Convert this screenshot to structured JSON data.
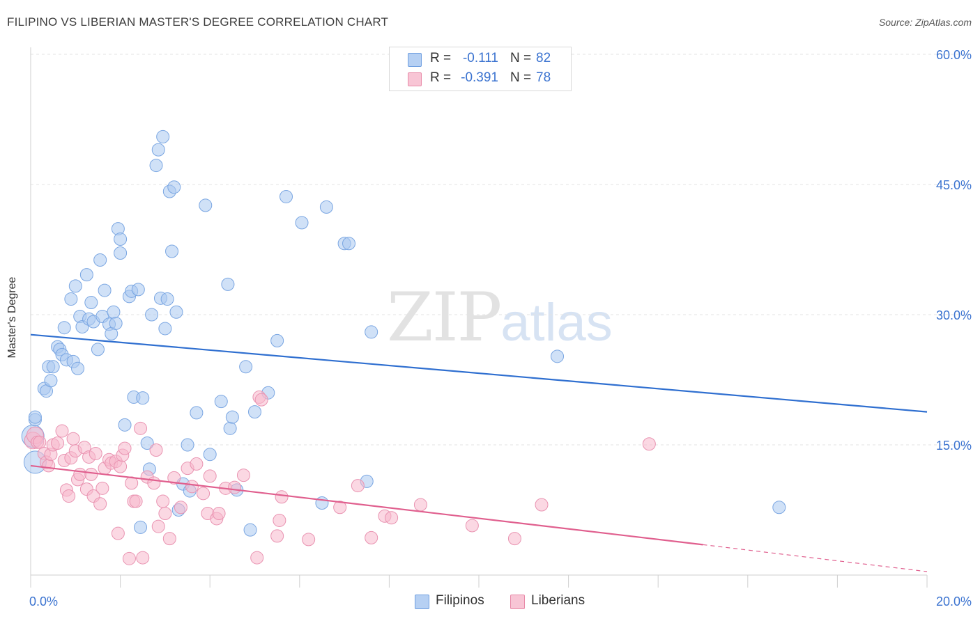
{
  "header": {
    "title": "FILIPINO VS LIBERIAN MASTER'S DEGREE CORRELATION CHART",
    "source": "Source: ZipAtlas.com"
  },
  "watermark": {
    "zip": "ZIP",
    "atlas": "atlas"
  },
  "stats": [
    {
      "r_label": "R =",
      "r_value": "-0.111",
      "n_label": "N =",
      "n_value": "82"
    },
    {
      "r_label": "R =",
      "r_value": "-0.391",
      "n_label": "N =",
      "n_value": "78"
    }
  ],
  "legend": {
    "filipinos": "Filipinos",
    "liberians": "Liberians"
  },
  "colors": {
    "filipinos_fill": "#a9c8f0",
    "filipinos_line": "#2f6fd0",
    "liberians_fill": "#f7b8cc",
    "liberians_line": "#e05f8e",
    "tick_label": "#3b73d0"
  },
  "chart_data": {
    "type": "scatter",
    "xlabel": "",
    "ylabel": "Master's Degree",
    "xlim": [
      0,
      20
    ],
    "ylim": [
      0,
      60
    ],
    "x_tick_labels": [
      "0.0%",
      "20.0%"
    ],
    "y_ticks": [
      15,
      30,
      45,
      60
    ],
    "y_tick_labels": [
      "15.0%",
      "30.0%",
      "45.0%",
      "60.0%"
    ],
    "grid": true,
    "legend_position": "bottom",
    "series": [
      {
        "name": "Filipinos",
        "trend": {
          "x": [
            0,
            20
          ],
          "y": [
            27.7,
            18.8
          ]
        },
        "points": [
          [
            0.1,
            17.9
          ],
          [
            0.1,
            18.2
          ],
          [
            0.3,
            21.5
          ],
          [
            0.35,
            21.2
          ],
          [
            0.4,
            24
          ],
          [
            0.45,
            22.4
          ],
          [
            0.5,
            24
          ],
          [
            0.6,
            26.3
          ],
          [
            0.65,
            26
          ],
          [
            0.7,
            25.4
          ],
          [
            0.75,
            28.5
          ],
          [
            0.8,
            24.8
          ],
          [
            0.9,
            31.8
          ],
          [
            0.95,
            24.6
          ],
          [
            1.0,
            33.3
          ],
          [
            1.05,
            23.8
          ],
          [
            1.1,
            29.8
          ],
          [
            1.15,
            28.6
          ],
          [
            1.25,
            34.6
          ],
          [
            1.3,
            29.5
          ],
          [
            1.35,
            31.4
          ],
          [
            1.4,
            29.2
          ],
          [
            1.5,
            26
          ],
          [
            1.55,
            36.3
          ],
          [
            1.6,
            29.8
          ],
          [
            1.65,
            32.8
          ],
          [
            1.75,
            28.9
          ],
          [
            1.8,
            27.8
          ],
          [
            1.85,
            30.3
          ],
          [
            1.9,
            29
          ],
          [
            1.95,
            39.9
          ],
          [
            2.0,
            38.7
          ],
          [
            2.0,
            37.1
          ],
          [
            2.1,
            17.3
          ],
          [
            2.2,
            32.1
          ],
          [
            2.25,
            32.7
          ],
          [
            2.3,
            20.5
          ],
          [
            2.4,
            32.9
          ],
          [
            2.45,
            5.5
          ],
          [
            2.5,
            20.4
          ],
          [
            2.6,
            15.2
          ],
          [
            2.65,
            12.2
          ],
          [
            2.7,
            30
          ],
          [
            2.8,
            47.2
          ],
          [
            2.85,
            49
          ],
          [
            2.9,
            31.9
          ],
          [
            2.95,
            50.5
          ],
          [
            3.0,
            28.4
          ],
          [
            3.05,
            31.8
          ],
          [
            3.1,
            44.2
          ],
          [
            3.15,
            37.3
          ],
          [
            3.2,
            44.7
          ],
          [
            3.25,
            30.3
          ],
          [
            3.3,
            7.5
          ],
          [
            3.4,
            10.5
          ],
          [
            3.5,
            15
          ],
          [
            3.55,
            9.7
          ],
          [
            3.7,
            18.7
          ],
          [
            3.9,
            42.6
          ],
          [
            4.0,
            13.9
          ],
          [
            4.25,
            20
          ],
          [
            4.4,
            33.5
          ],
          [
            4.45,
            16.9
          ],
          [
            4.5,
            18.2
          ],
          [
            4.6,
            9.8
          ],
          [
            4.8,
            24
          ],
          [
            4.9,
            5.2
          ],
          [
            5.0,
            18.8
          ],
          [
            5.3,
            21
          ],
          [
            5.5,
            27
          ],
          [
            5.7,
            43.6
          ],
          [
            6.05,
            40.6
          ],
          [
            6.5,
            8.3
          ],
          [
            6.6,
            42.4
          ],
          [
            7.0,
            38.2
          ],
          [
            7.1,
            38.2
          ],
          [
            7.5,
            10.8
          ],
          [
            7.6,
            28
          ],
          [
            11.75,
            25.2
          ],
          [
            16.7,
            7.8
          ],
          [
            0.05,
            16
          ],
          [
            0.1,
            13
          ]
        ]
      },
      {
        "name": "Liberians",
        "trend": {
          "x": [
            0,
            15
          ],
          "y": [
            12.6,
            3.5
          ]
        },
        "trend_dashed": {
          "x": [
            15,
            20
          ],
          "y": [
            3.5,
            0.4
          ]
        },
        "points": [
          [
            0.05,
            15.5
          ],
          [
            0.1,
            16.1
          ],
          [
            0.15,
            15.3
          ],
          [
            0.2,
            15.3
          ],
          [
            0.3,
            14
          ],
          [
            0.35,
            13
          ],
          [
            0.4,
            12.6
          ],
          [
            0.45,
            13.9
          ],
          [
            0.5,
            15
          ],
          [
            0.6,
            15.2
          ],
          [
            0.7,
            16.6
          ],
          [
            0.75,
            13.2
          ],
          [
            0.8,
            9.8
          ],
          [
            0.85,
            9.1
          ],
          [
            0.9,
            13.5
          ],
          [
            0.95,
            15.7
          ],
          [
            1.0,
            14.3
          ],
          [
            1.05,
            11
          ],
          [
            1.1,
            11.6
          ],
          [
            1.2,
            14.7
          ],
          [
            1.25,
            9.9
          ],
          [
            1.3,
            13.6
          ],
          [
            1.35,
            11.6
          ],
          [
            1.4,
            9.1
          ],
          [
            1.45,
            14
          ],
          [
            1.55,
            8.2
          ],
          [
            1.6,
            10
          ],
          [
            1.65,
            12.3
          ],
          [
            1.75,
            13.3
          ],
          [
            1.8,
            12.9
          ],
          [
            1.9,
            13.1
          ],
          [
            1.95,
            4.8
          ],
          [
            2.0,
            12.5
          ],
          [
            2.05,
            13.8
          ],
          [
            2.1,
            14.6
          ],
          [
            2.2,
            1.9
          ],
          [
            2.25,
            10.6
          ],
          [
            2.3,
            8.5
          ],
          [
            2.35,
            8.5
          ],
          [
            2.45,
            16.9
          ],
          [
            2.5,
            2
          ],
          [
            2.6,
            11.3
          ],
          [
            2.75,
            10.6
          ],
          [
            2.8,
            14.4
          ],
          [
            2.85,
            5.6
          ],
          [
            2.95,
            8.5
          ],
          [
            3.0,
            7.1
          ],
          [
            3.1,
            4.2
          ],
          [
            3.2,
            11.2
          ],
          [
            3.35,
            7.8
          ],
          [
            3.5,
            12.3
          ],
          [
            3.6,
            10.2
          ],
          [
            3.7,
            12.8
          ],
          [
            3.85,
            9.4
          ],
          [
            3.95,
            7.1
          ],
          [
            4.0,
            11.4
          ],
          [
            4.15,
            6.5
          ],
          [
            4.2,
            7.1
          ],
          [
            4.35,
            10
          ],
          [
            4.55,
            10.1
          ],
          [
            4.75,
            11.5
          ],
          [
            5.05,
            2
          ],
          [
            5.1,
            20.5
          ],
          [
            5.15,
            20.2
          ],
          [
            5.5,
            4.5
          ],
          [
            5.55,
            6.3
          ],
          [
            5.6,
            9
          ],
          [
            6.2,
            4.1
          ],
          [
            6.9,
            7.8
          ],
          [
            7.3,
            10.3
          ],
          [
            7.6,
            4.3
          ],
          [
            7.9,
            6.8
          ],
          [
            8.05,
            6.6
          ],
          [
            8.7,
            8.1
          ],
          [
            9.85,
            5.7
          ],
          [
            10.8,
            4.2
          ],
          [
            11.4,
            8.1
          ],
          [
            13.8,
            15.1
          ]
        ]
      }
    ]
  }
}
